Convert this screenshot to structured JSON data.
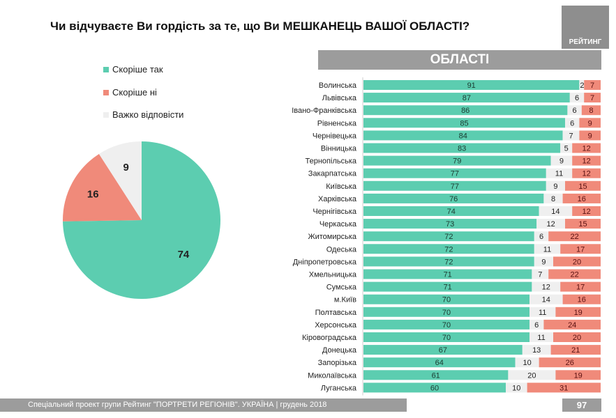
{
  "title": "Чи відчуваєте Ви гордість за те, що Ви МЕШКАНЕЦЬ ВАШОЇ ОБЛАСТІ?",
  "logo": "РЕЙТИНГ",
  "footer": "Спеціальний проект групи Рейтинг \"ПОРТРЕТИ РЕГІОНІВ\". УКРАЇНА | грудень 2018",
  "page_number": "97",
  "colors": {
    "yes": "#5ccdb0",
    "no": "#f08a7a",
    "hard": "#efefef"
  },
  "chart_data": [
    {
      "type": "pie",
      "legend": [
        "Скоріше так",
        "Скоріше ні",
        "Важко відповісти"
      ],
      "values": [
        74,
        16,
        9
      ],
      "labels": [
        "74",
        "16",
        "9"
      ],
      "legend_placement": "top-left"
    },
    {
      "type": "bar",
      "stacked": true,
      "orientation": "horizontal",
      "header": "ОБЛАСТІ",
      "categories": [
        "Волинська",
        "Львівська",
        "Івано-Франківська",
        "Рівненська",
        "Чернівецька",
        "Вінницька",
        "Тернопільська",
        "Закарпатська",
        "Київська",
        "Харківська",
        "Чернігівська",
        "Черкаська",
        "Житомирська",
        "Одеська",
        "Дніпропетровська",
        "Хмельницька",
        "Сумська",
        "м.Київ",
        "Полтавська",
        "Херсонська",
        "Кіровоградська",
        "Донецька",
        "Запорізька",
        "Миколаївська",
        "Луганська"
      ],
      "series": [
        {
          "name": "Скоріше так",
          "values": [
            91,
            87,
            86,
            85,
            84,
            83,
            79,
            77,
            77,
            76,
            74,
            73,
            72,
            72,
            72,
            71,
            71,
            70,
            70,
            70,
            70,
            67,
            64,
            61,
            60
          ]
        },
        {
          "name": "Важко відповісти",
          "values": [
            2,
            6,
            6,
            6,
            7,
            5,
            9,
            11,
            9,
            8,
            14,
            12,
            6,
            11,
            9,
            7,
            12,
            14,
            11,
            6,
            11,
            13,
            10,
            20,
            10
          ]
        },
        {
          "name": "Скоріше ні",
          "values": [
            7,
            7,
            8,
            9,
            9,
            12,
            12,
            12,
            15,
            16,
            12,
            15,
            22,
            17,
            20,
            22,
            17,
            16,
            19,
            24,
            20,
            21,
            26,
            19,
            31
          ]
        }
      ]
    }
  ]
}
